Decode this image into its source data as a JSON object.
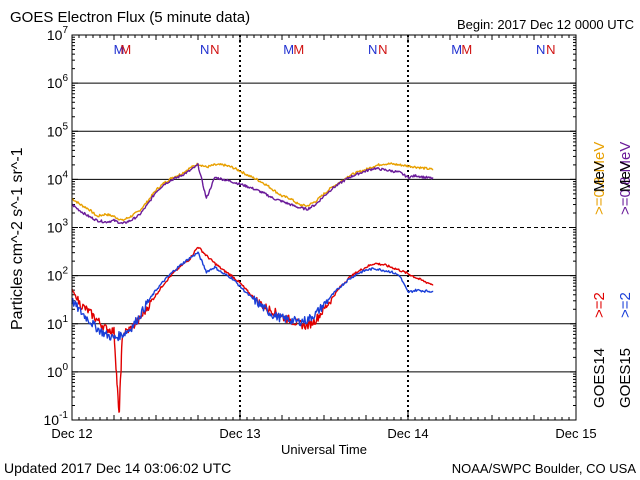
{
  "header": {
    "title": "GOES Electron Flux (5 minute data)",
    "begin": "Begin: 2017 Dec 12 0000 UTC"
  },
  "footer": {
    "updated": "Updated 2017 Dec 14 03:06:02 UTC",
    "credit": "NOAA/SWPC Boulder, CO USA"
  },
  "right_labels": {
    "orange": ">=0.8 MeV",
    "purple": ">=0.8 MeV",
    "red": ">=2",
    "blue": ">=2",
    "mev": "MeV",
    "goes14": "GOES14",
    "goes15": "GOES15"
  },
  "colors": {
    "orange": "#e8a000",
    "purple": "#6a1b9a",
    "red": "#e00000",
    "blue": "#1a3fd8",
    "m_blue": "#2030d0",
    "m_red": "#d01010"
  },
  "chart_data": {
    "type": "line",
    "title": "GOES Electron Flux (5 minute data)",
    "xlabel": "Universal Time",
    "ylabel": "Particles cm^-2 s^-1 sr^-1",
    "y_scale": "log",
    "ylim": [
      0.1,
      10000000
    ],
    "y_ticks": [
      "10^-1",
      "10^0",
      "10^1",
      "10^2",
      "10^3",
      "10^4",
      "10^5",
      "10^6",
      "10^7"
    ],
    "x_ticks": [
      "Dec 12",
      "Dec 13",
      "Dec 14",
      "Dec 15"
    ],
    "xlim_days": [
      0,
      3
    ],
    "threshold_dashed": 1000,
    "markers": [
      {
        "t": 0.28,
        "label": "M",
        "sat": "GOES15"
      },
      {
        "t": 0.32,
        "label": "M",
        "sat": "GOES14"
      },
      {
        "t": 0.79,
        "label": "N",
        "sat": "GOES15"
      },
      {
        "t": 0.85,
        "label": "N",
        "sat": "GOES14"
      },
      {
        "t": 1.29,
        "label": "M",
        "sat": "GOES15"
      },
      {
        "t": 1.35,
        "label": "M",
        "sat": "GOES14"
      },
      {
        "t": 1.79,
        "label": "N",
        "sat": "GOES15"
      },
      {
        "t": 1.85,
        "label": "N",
        "sat": "GOES14"
      },
      {
        "t": 2.29,
        "label": "M",
        "sat": "GOES15"
      },
      {
        "t": 2.35,
        "label": "M",
        "sat": "GOES14"
      },
      {
        "t": 2.79,
        "label": "N",
        "sat": "GOES15"
      },
      {
        "t": 2.85,
        "label": "N",
        "sat": "GOES14"
      }
    ],
    "series": [
      {
        "name": "GOES14 >=0.8 MeV",
        "color": "orange",
        "t": [
          0.0,
          0.05,
          0.1,
          0.15,
          0.2,
          0.25,
          0.3,
          0.35,
          0.4,
          0.45,
          0.5,
          0.55,
          0.6,
          0.65,
          0.7,
          0.75,
          0.8,
          0.85,
          0.9,
          0.95,
          1.0,
          1.05,
          1.1,
          1.15,
          1.2,
          1.25,
          1.3,
          1.35,
          1.4,
          1.45,
          1.5,
          1.55,
          1.6,
          1.65,
          1.7,
          1.75,
          1.8,
          1.85,
          1.9,
          1.95,
          2.0,
          2.05,
          2.1,
          2.15
        ],
        "values": [
          4000,
          3000,
          2400,
          1700,
          1900,
          1700,
          1400,
          1700,
          2200,
          3500,
          6000,
          8500,
          11000,
          13000,
          17000,
          21000,
          18000,
          20000,
          20000,
          18000,
          15000,
          12000,
          10000,
          8000,
          6000,
          4500,
          4000,
          3000,
          2800,
          3500,
          5000,
          7000,
          9000,
          12000,
          14000,
          16000,
          19000,
          21000,
          21000,
          20000,
          19000,
          18000,
          17000,
          16000
        ]
      },
      {
        "name": "GOES15 >=0.8 MeV",
        "color": "purple",
        "t": [
          0.0,
          0.05,
          0.1,
          0.15,
          0.2,
          0.25,
          0.3,
          0.35,
          0.4,
          0.45,
          0.5,
          0.55,
          0.6,
          0.65,
          0.7,
          0.75,
          0.8,
          0.85,
          0.9,
          0.95,
          1.0,
          1.05,
          1.1,
          1.15,
          1.2,
          1.25,
          1.3,
          1.35,
          1.4,
          1.45,
          1.5,
          1.55,
          1.6,
          1.65,
          1.7,
          1.75,
          1.8,
          1.85,
          1.9,
          1.95,
          2.0,
          2.05,
          2.1,
          2.15
        ],
        "values": [
          3000,
          2200,
          1700,
          1400,
          1300,
          1400,
          1200,
          1400,
          1800,
          3000,
          5500,
          8000,
          10000,
          12000,
          15000,
          20000,
          4000,
          11000,
          10000,
          9000,
          8000,
          7000,
          6000,
          5000,
          4000,
          3500,
          3000,
          2600,
          2400,
          3000,
          4500,
          6500,
          8500,
          11000,
          13000,
          15000,
          17000,
          16000,
          15000,
          14000,
          11000,
          12000,
          11000,
          10500
        ]
      },
      {
        "name": "GOES14 >=2 MeV",
        "color": "red",
        "t": [
          0.0,
          0.05,
          0.1,
          0.15,
          0.2,
          0.25,
          0.28,
          0.3,
          0.35,
          0.4,
          0.45,
          0.5,
          0.55,
          0.6,
          0.65,
          0.7,
          0.75,
          0.8,
          0.85,
          0.9,
          0.95,
          1.0,
          1.05,
          1.1,
          1.15,
          1.2,
          1.25,
          1.3,
          1.35,
          1.4,
          1.45,
          1.5,
          1.55,
          1.6,
          1.65,
          1.7,
          1.75,
          1.8,
          1.85,
          1.9,
          1.95,
          2.0,
          2.05,
          2.1,
          2.15
        ],
        "values": [
          50,
          25,
          18,
          12,
          8,
          7,
          0.12,
          6,
          8,
          12,
          22,
          40,
          70,
          110,
          160,
          220,
          400,
          260,
          180,
          130,
          100,
          70,
          45,
          30,
          22,
          18,
          14,
          12,
          10,
          9,
          12,
          20,
          35,
          60,
          90,
          120,
          150,
          180,
          170,
          150,
          130,
          110,
          90,
          75,
          65
        ]
      },
      {
        "name": "GOES15 >=2 MeV",
        "color": "blue",
        "t": [
          0.0,
          0.05,
          0.1,
          0.15,
          0.2,
          0.25,
          0.3,
          0.35,
          0.4,
          0.45,
          0.5,
          0.55,
          0.6,
          0.65,
          0.7,
          0.75,
          0.8,
          0.85,
          0.9,
          0.95,
          1.0,
          1.05,
          1.1,
          1.15,
          1.2,
          1.25,
          1.3,
          1.35,
          1.4,
          1.45,
          1.5,
          1.55,
          1.6,
          1.65,
          1.7,
          1.75,
          1.8,
          1.85,
          1.9,
          1.95,
          2.0,
          2.05,
          2.1,
          2.15
        ],
        "values": [
          30,
          18,
          12,
          8,
          6,
          5,
          6,
          8,
          14,
          28,
          50,
          80,
          120,
          170,
          230,
          300,
          120,
          150,
          110,
          90,
          60,
          40,
          28,
          20,
          15,
          13,
          12,
          11,
          12,
          16,
          25,
          40,
          60,
          85,
          110,
          130,
          140,
          130,
          120,
          100,
          45,
          50,
          48,
          47
        ]
      }
    ]
  }
}
